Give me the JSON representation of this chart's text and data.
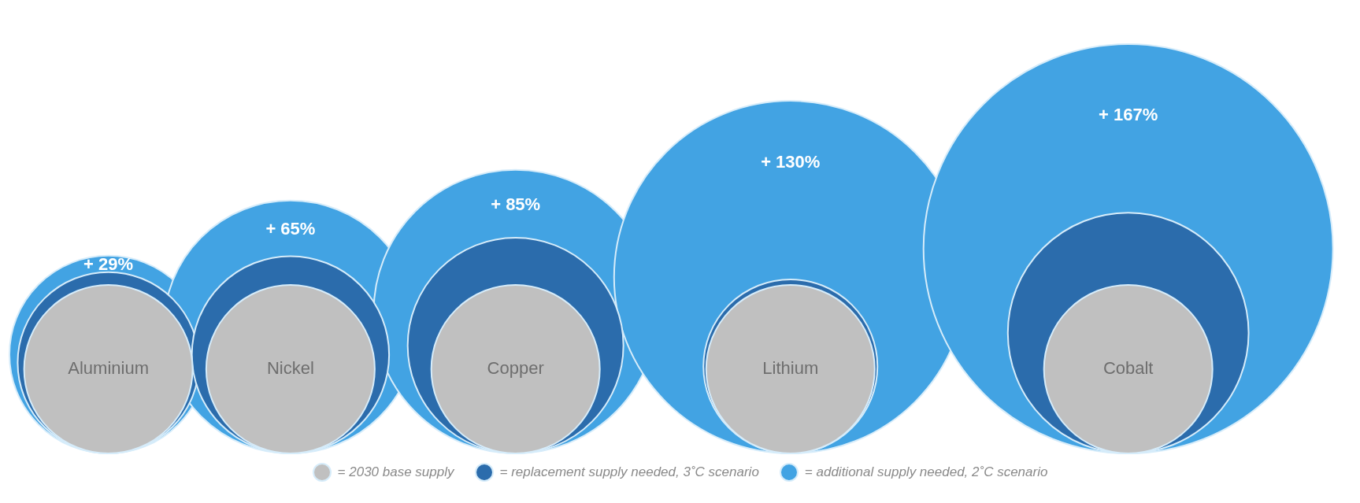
{
  "chart_data": {
    "type": "other",
    "categories": [
      "Aluminium",
      "Nickel",
      "Copper",
      "Lithium",
      "Cobalt"
    ],
    "legend": "bottom",
    "series": [
      {
        "name": "= 2030 base supply",
        "color": "#c0c0c0",
        "values": [
          null,
          null,
          null,
          null,
          null
        ]
      },
      {
        "name": "= replacement supply needed, 3˚C scenario",
        "color": "#2b6cac",
        "values": [
          null,
          null,
          null,
          null,
          null
        ]
      },
      {
        "name": "= additional supply needed, 2˚C scenario",
        "color": "#42a3e3",
        "values": [
          29,
          65,
          85,
          130,
          167
        ],
        "value_labels": [
          "+ 29%",
          "+ 65%",
          "+ 85%",
          "+ 130%",
          "+ 167%"
        ]
      }
    ]
  }
}
